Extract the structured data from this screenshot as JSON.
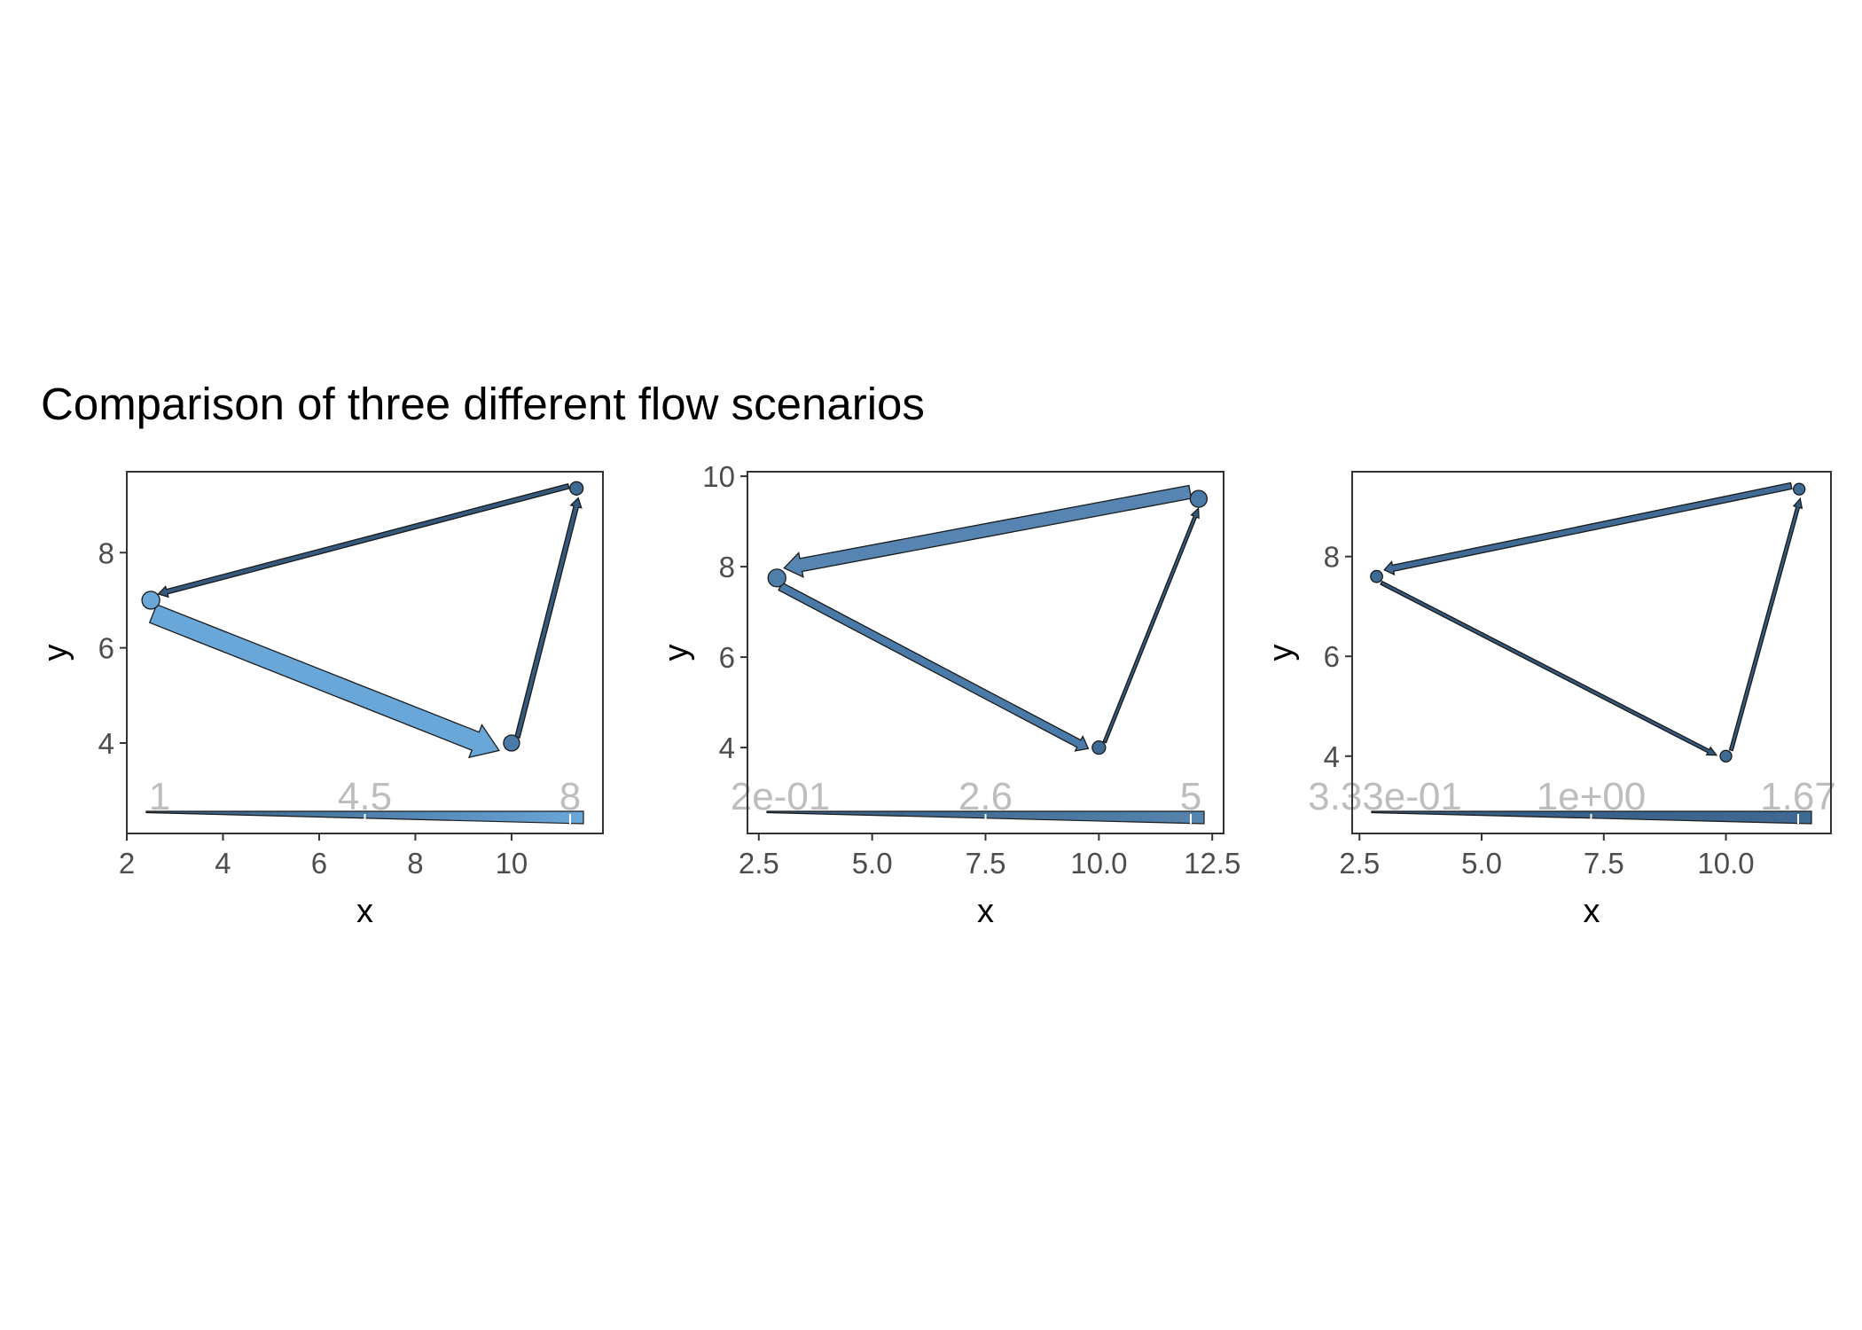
{
  "title": "Comparison of three different flow scenarios",
  "colors": {
    "outline": "#1a1a1a",
    "panel_border": "#333333",
    "tick_text": "#4d4d4d",
    "legend_text": "#bdbdbd",
    "low": "#c6dbef",
    "mid": "#56b1f7",
    "high": "#132b43"
  },
  "chart_data": [
    {
      "type": "flow",
      "xlabel": "x",
      "ylabel": "y",
      "xlim": [
        2.0,
        11.9
      ],
      "ylim": [
        2.1,
        9.7
      ],
      "xticks": [
        2,
        4,
        6,
        8,
        10
      ],
      "xtick_labels": [
        "2",
        "4",
        "6",
        "8",
        "10"
      ],
      "yticks": [
        4,
        6,
        8
      ],
      "ytick_labels": [
        "4",
        "6",
        "8"
      ],
      "nodes": [
        {
          "x": 2.5,
          "y": 7.0,
          "size": 1.0,
          "color": "#6aa7d9"
        },
        {
          "x": 10.0,
          "y": 4.0,
          "size": 0.8,
          "color": "#4a7ba8"
        },
        {
          "x": 11.35,
          "y": 9.35,
          "size": 0.5,
          "color": "#3e6b94"
        }
      ],
      "flows": [
        {
          "from": 0,
          "to": 1,
          "value": 8,
          "color": "#6aa7d9"
        },
        {
          "from": 1,
          "to": 2,
          "value": 1,
          "color": "#34597d"
        },
        {
          "from": 2,
          "to": 0,
          "value": 1,
          "color": "#34597d"
        }
      ],
      "legend": {
        "labels": [
          "1",
          "4.5",
          "8"
        ],
        "values": [
          1,
          4.5,
          8
        ],
        "min": 1,
        "max": 8,
        "color_low": "#34597d",
        "color_high": "#6aa7d9"
      }
    },
    {
      "type": "flow",
      "xlabel": "x",
      "ylabel": "y",
      "xlim": [
        2.25,
        12.75
      ],
      "ylim": [
        2.1,
        10.1
      ],
      "xticks": [
        2.5,
        5.0,
        7.5,
        10.0,
        12.5
      ],
      "xtick_labels": [
        "2.5",
        "5.0",
        "7.5",
        "10.0",
        "12.5"
      ],
      "yticks": [
        4,
        6,
        8,
        10
      ],
      "ytick_labels": [
        "4",
        "6",
        "8",
        "10"
      ],
      "nodes": [
        {
          "x": 2.9,
          "y": 7.75,
          "size": 1.0,
          "color": "#4f7ea8"
        },
        {
          "x": 10.0,
          "y": 4.0,
          "size": 0.5,
          "color": "#3e6b94"
        },
        {
          "x": 12.2,
          "y": 9.5,
          "size": 0.9,
          "color": "#4a7ba8"
        }
      ],
      "flows": [
        {
          "from": 0,
          "to": 1,
          "value": 2.6,
          "color": "#4a7ba8"
        },
        {
          "from": 1,
          "to": 2,
          "value": 0.2,
          "color": "#34597d"
        },
        {
          "from": 2,
          "to": 0,
          "value": 5,
          "color": "#5585b0"
        }
      ],
      "legend": {
        "labels": [
          "2e-01",
          "2.6",
          "5"
        ],
        "values": [
          0.2,
          2.6,
          5
        ],
        "min": 0.2,
        "max": 5,
        "color_low": "#34597d",
        "color_high": "#5585b0"
      }
    },
    {
      "type": "flow",
      "xlabel": "x",
      "ylabel": "y",
      "xlim": [
        2.35,
        12.15
      ],
      "ylim": [
        2.45,
        9.7
      ],
      "xticks": [
        2.5,
        5.0,
        7.5,
        10.0
      ],
      "xtick_labels": [
        "2.5",
        "5.0",
        "7.5",
        "10.0"
      ],
      "yticks": [
        4,
        6,
        8
      ],
      "ytick_labels": [
        "4",
        "6",
        "8"
      ],
      "nodes": [
        {
          "x": 2.85,
          "y": 7.6,
          "size": 0.35,
          "color": "#3e6b94"
        },
        {
          "x": 10.0,
          "y": 4.0,
          "size": 0.3,
          "color": "#3e6b94"
        },
        {
          "x": 11.5,
          "y": 9.35,
          "size": 0.3,
          "color": "#3e6b94"
        }
      ],
      "flows": [
        {
          "from": 0,
          "to": 1,
          "value": 0.333,
          "color": "#34597d"
        },
        {
          "from": 1,
          "to": 2,
          "value": 0.333,
          "color": "#34597d"
        },
        {
          "from": 2,
          "to": 0,
          "value": 1.67,
          "color": "#3f6a93"
        }
      ],
      "legend": {
        "labels": [
          "3.33e-01",
          "1e+00",
          "1.67"
        ],
        "values": [
          0.333,
          1.0,
          1.67
        ],
        "min": 0.333,
        "max": 1.67,
        "color_low": "#34597d",
        "color_high": "#3f6a93"
      }
    }
  ]
}
